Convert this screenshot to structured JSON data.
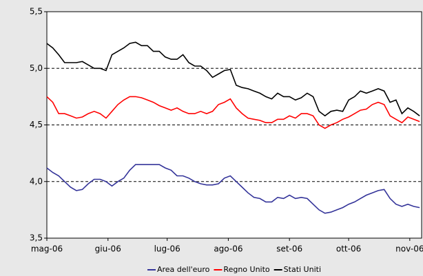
{
  "chart_data": {
    "type": "line",
    "x": [
      0,
      3,
      6,
      9,
      12,
      15,
      18,
      21,
      24,
      27,
      30,
      33,
      36,
      39,
      42,
      45,
      48,
      51,
      54,
      57,
      60,
      63,
      66,
      69,
      72,
      75,
      78,
      81,
      84,
      87,
      90,
      93,
      96,
      99,
      102,
      105,
      108,
      111,
      114,
      117,
      120,
      123,
      126,
      129,
      132,
      135,
      138,
      141,
      144,
      147,
      150,
      153,
      156,
      159,
      162,
      165,
      168,
      171,
      174,
      177,
      180,
      183,
      186,
      189
    ],
    "xlim": [
      0,
      190
    ],
    "xticks": [
      {
        "value": 0,
        "label": "mag-06"
      },
      {
        "value": 31,
        "label": "giu-06"
      },
      {
        "value": 61,
        "label": "lug-06"
      },
      {
        "value": 92,
        "label": "ago-06"
      },
      {
        "value": 123,
        "label": "set-06"
      },
      {
        "value": 153,
        "label": "ott-06"
      },
      {
        "value": 184,
        "label": "nov-06"
      }
    ],
    "ylim": [
      3.5,
      5.5
    ],
    "yticks": [
      {
        "value": 3.5,
        "label": "3,5"
      },
      {
        "value": 4.0,
        "label": "4,0"
      },
      {
        "value": 4.5,
        "label": "4,5"
      },
      {
        "value": 5.0,
        "label": "5,0"
      },
      {
        "value": 5.5,
        "label": "5,5"
      }
    ],
    "grid": true,
    "legend": "bottom",
    "series": [
      {
        "name": "Area dell'euro",
        "color": "#333399",
        "values": [
          4.12,
          4.08,
          4.05,
          4.0,
          3.95,
          3.92,
          3.93,
          3.98,
          4.02,
          4.02,
          4.0,
          3.96,
          4.0,
          4.03,
          4.1,
          4.15,
          4.15,
          4.15,
          4.15,
          4.15,
          4.12,
          4.1,
          4.05,
          4.05,
          4.03,
          4.0,
          3.98,
          3.97,
          3.97,
          3.98,
          4.03,
          4.05,
          4.0,
          3.95,
          3.9,
          3.86,
          3.85,
          3.82,
          3.82,
          3.86,
          3.85,
          3.88,
          3.85,
          3.86,
          3.85,
          3.8,
          3.75,
          3.72,
          3.73,
          3.75,
          3.77,
          3.8,
          3.82,
          3.85,
          3.88,
          3.9,
          3.92,
          3.93,
          3.85,
          3.8,
          3.78,
          3.8,
          3.78,
          3.77
        ]
      },
      {
        "name": "Regno Unito",
        "color": "#ff0000",
        "values": [
          4.75,
          4.7,
          4.6,
          4.6,
          4.58,
          4.56,
          4.57,
          4.6,
          4.62,
          4.6,
          4.56,
          4.62,
          4.68,
          4.72,
          4.75,
          4.75,
          4.74,
          4.72,
          4.7,
          4.67,
          4.65,
          4.63,
          4.65,
          4.62,
          4.6,
          4.6,
          4.62,
          4.6,
          4.62,
          4.68,
          4.7,
          4.73,
          4.65,
          4.6,
          4.56,
          4.55,
          4.54,
          4.52,
          4.52,
          4.55,
          4.55,
          4.58,
          4.56,
          4.6,
          4.6,
          4.58,
          4.5,
          4.47,
          4.5,
          4.52,
          4.55,
          4.57,
          4.6,
          4.63,
          4.64,
          4.68,
          4.7,
          4.68,
          4.58,
          4.55,
          4.52,
          4.57,
          4.55,
          4.53
        ]
      },
      {
        "name": "Stati Uniti",
        "color": "#000000",
        "values": [
          5.22,
          5.18,
          5.12,
          5.05,
          5.05,
          5.05,
          5.06,
          5.03,
          5.0,
          5.0,
          4.98,
          5.12,
          5.15,
          5.18,
          5.22,
          5.23,
          5.2,
          5.2,
          5.15,
          5.15,
          5.1,
          5.08,
          5.08,
          5.12,
          5.05,
          5.02,
          5.02,
          4.98,
          4.92,
          4.95,
          4.98,
          4.99,
          4.85,
          4.83,
          4.82,
          4.8,
          4.78,
          4.75,
          4.73,
          4.78,
          4.75,
          4.75,
          4.72,
          4.74,
          4.78,
          4.75,
          4.62,
          4.58,
          4.62,
          4.63,
          4.62,
          4.72,
          4.75,
          4.8,
          4.78,
          4.8,
          4.82,
          4.8,
          4.7,
          4.72,
          4.6,
          4.65,
          4.62,
          4.58
        ]
      }
    ]
  }
}
